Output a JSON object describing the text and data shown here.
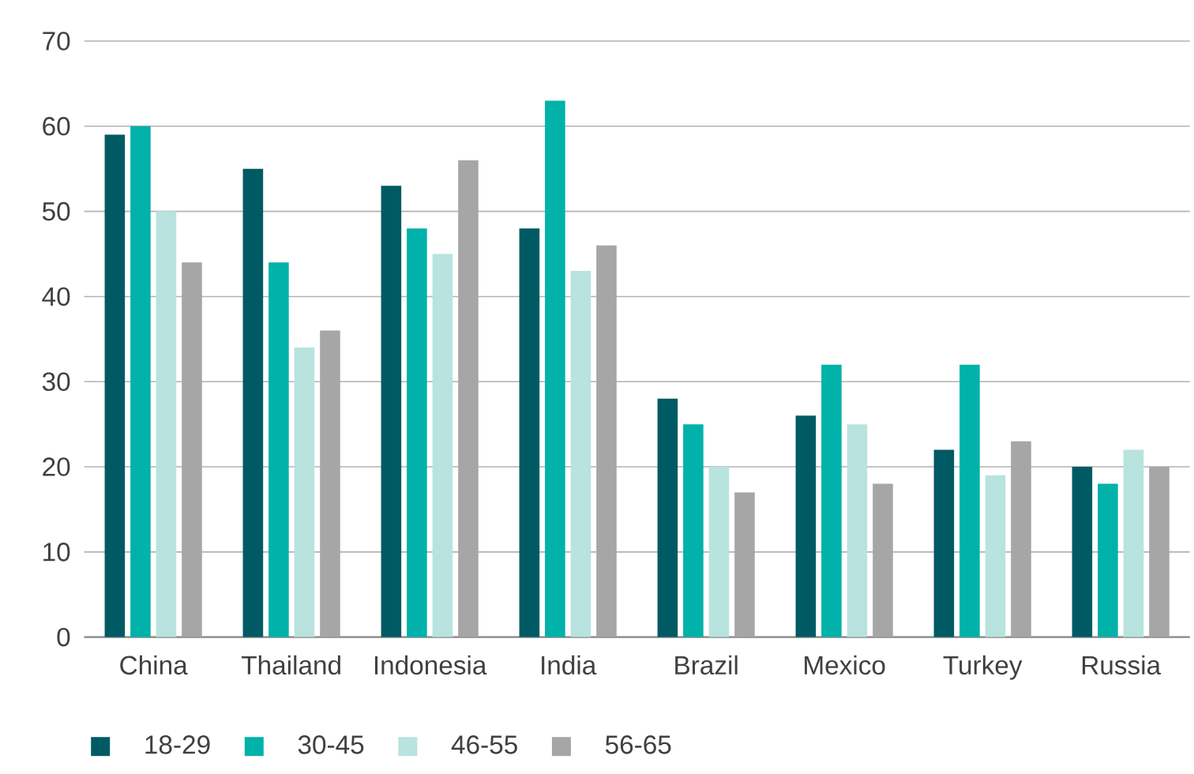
{
  "chart_data": {
    "type": "bar",
    "categories": [
      "China",
      "Thailand",
      "Indonesia",
      "India",
      "Brazil",
      "Mexico",
      "Turkey",
      "Russia"
    ],
    "series": [
      {
        "name": "18-29",
        "color": "#005a64",
        "values": [
          59,
          55,
          53,
          48,
          28,
          26,
          22,
          20
        ]
      },
      {
        "name": "30-45",
        "color": "#00b2a9",
        "values": [
          60,
          44,
          48,
          63,
          25,
          32,
          32,
          18
        ]
      },
      {
        "name": "46-55",
        "color": "#b8e3df",
        "values": [
          50,
          34,
          45,
          43,
          20,
          25,
          19,
          22
        ]
      },
      {
        "name": "56-65",
        "color": "#a6a6a6",
        "values": [
          44,
          36,
          56,
          46,
          17,
          18,
          23,
          20
        ]
      }
    ],
    "ylim": [
      0,
      70
    ],
    "yticks": [
      0,
      10,
      20,
      30,
      40,
      50,
      60,
      70
    ],
    "grid": "y",
    "legend": "bottom left"
  }
}
